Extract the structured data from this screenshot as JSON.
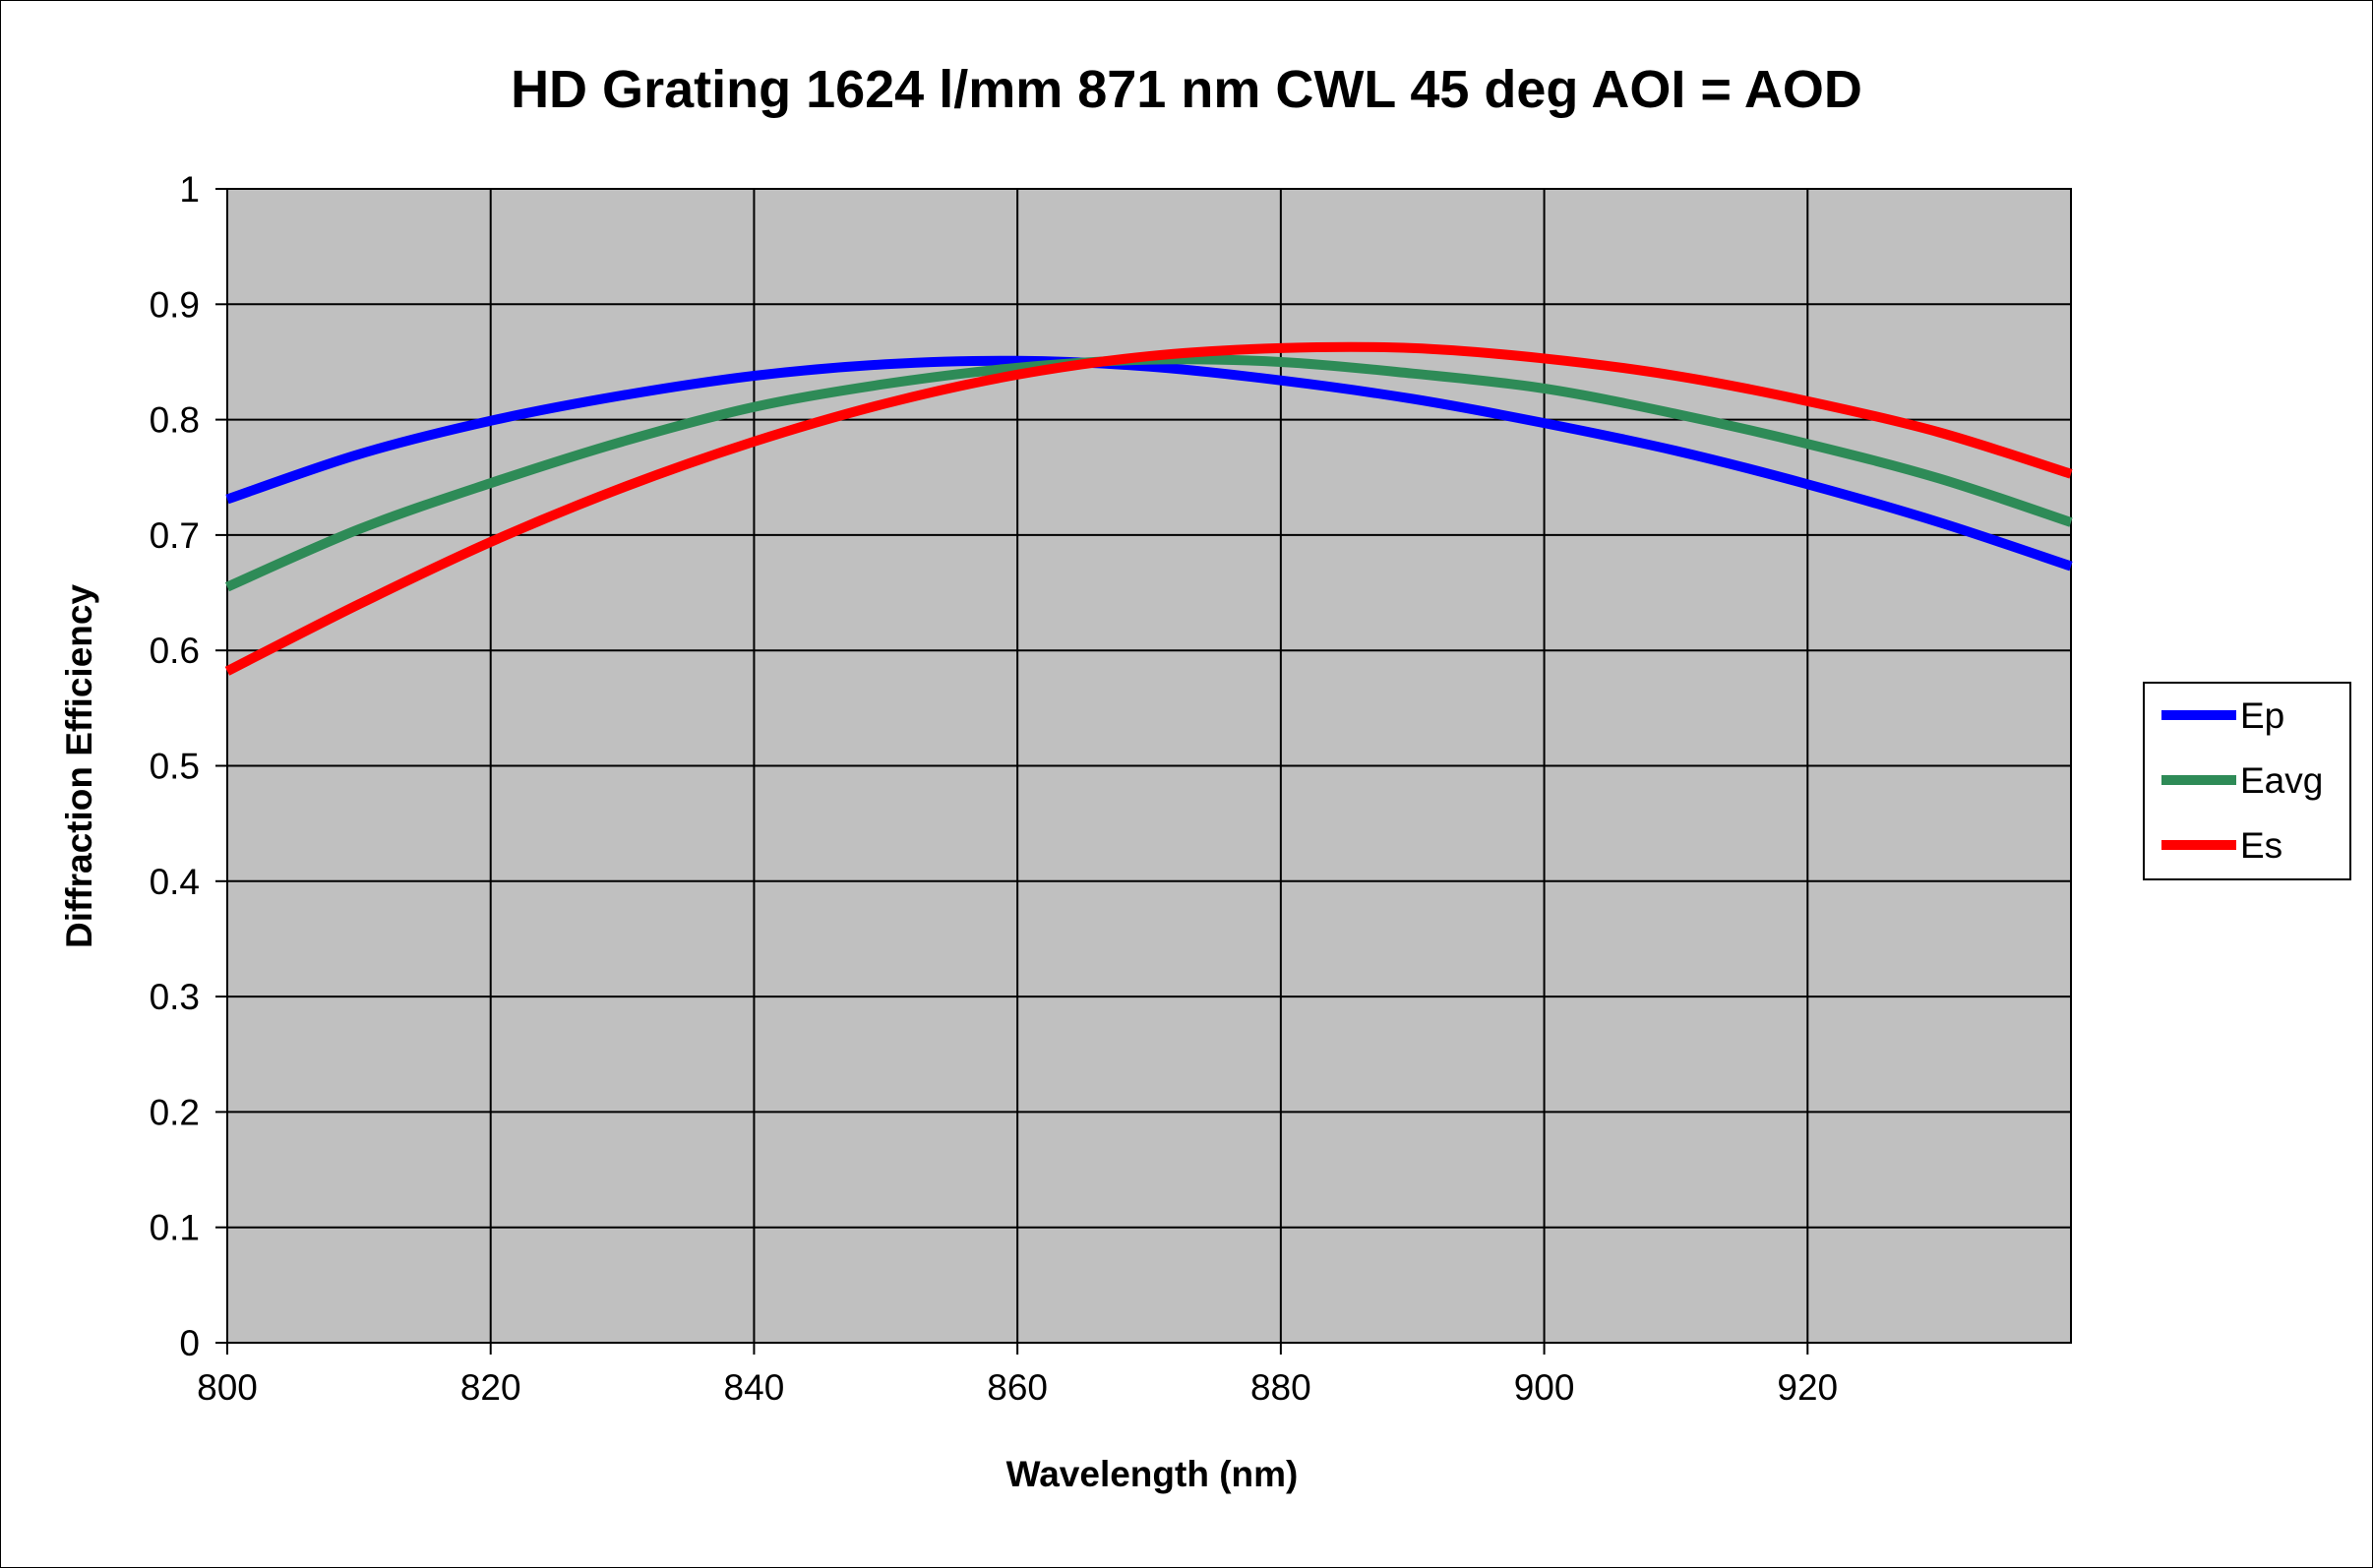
{
  "chart_data": {
    "type": "line",
    "title": "HD Grating 1624 l/mm 871 nm CWL 45 deg AOI = AOD",
    "xlabel": "Wavelength (nm)",
    "ylabel": "Diffraction Efficiency",
    "xlim": [
      800,
      940
    ],
    "ylim": [
      0,
      1
    ],
    "xticks": [
      800,
      820,
      840,
      860,
      880,
      900,
      920
    ],
    "xtick_labels": [
      "800",
      "820",
      "840",
      "860",
      "880",
      "900",
      "920"
    ],
    "yticks": [
      0,
      0.1,
      0.2,
      0.3,
      0.4,
      0.5,
      0.6,
      0.7,
      0.8,
      0.9,
      1
    ],
    "ytick_labels": [
      "0",
      "0.1",
      "0.2",
      "0.3",
      "0.4",
      "0.5",
      "0.6",
      "0.7",
      "0.8",
      "0.9",
      "1"
    ],
    "grid": true,
    "plot_background": "#c0c0c0",
    "legend_position": "right",
    "x": [
      800,
      810,
      820,
      830,
      840,
      850,
      860,
      870,
      880,
      890,
      900,
      910,
      920,
      930,
      940
    ],
    "series": [
      {
        "name": "Ep",
        "color": "#0000ff",
        "values": [
          0.731,
          0.77,
          0.799,
          0.821,
          0.838,
          0.848,
          0.851,
          0.846,
          0.834,
          0.818,
          0.797,
          0.773,
          0.744,
          0.711,
          0.673
        ]
      },
      {
        "name": "Eavg",
        "color": "#2e8b57",
        "values": [
          0.655,
          0.705,
          0.745,
          0.781,
          0.811,
          0.831,
          0.845,
          0.852,
          0.85,
          0.84,
          0.827,
          0.805,
          0.779,
          0.749,
          0.711
        ]
      },
      {
        "name": "Es",
        "color": "#ff0000",
        "values": [
          0.582,
          0.64,
          0.694,
          0.741,
          0.781,
          0.814,
          0.839,
          0.855,
          0.862,
          0.862,
          0.853,
          0.838,
          0.816,
          0.789,
          0.753
        ]
      }
    ]
  }
}
